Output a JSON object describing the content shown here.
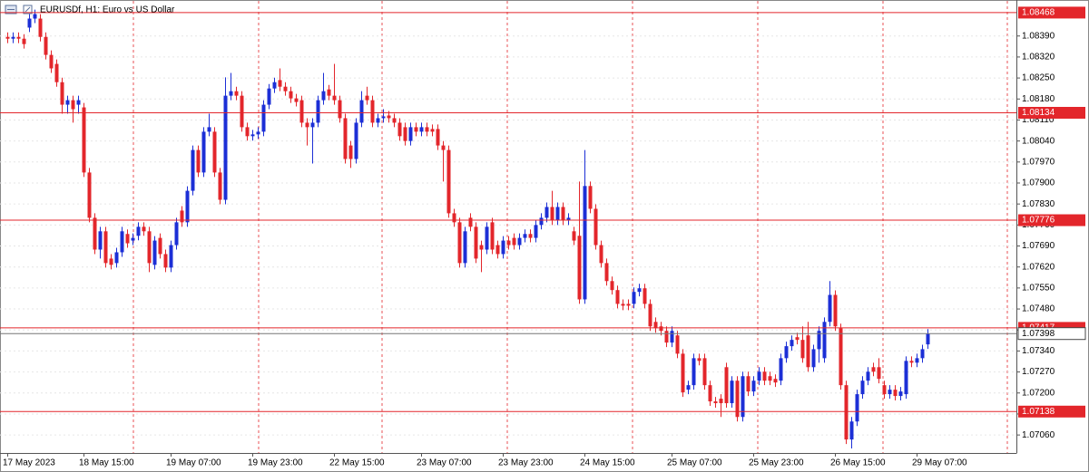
{
  "chart_data": {
    "type": "candlestick",
    "title": "EURUSDf, H1:  Euro vs US Dollar",
    "up_color": "#1c2fd6",
    "down_color": "#e3262b",
    "level_color": "#e3262b",
    "ylim": [
      1.07,
      1.0851
    ],
    "yticks": [
      {
        "value": 1.0839,
        "label": "1.08390"
      },
      {
        "value": 1.0832,
        "label": "1.08320"
      },
      {
        "value": 1.0825,
        "label": "1.08250"
      },
      {
        "value": 1.0818,
        "label": "1.08180"
      },
      {
        "value": 1.0811,
        "label": "1.08110"
      },
      {
        "value": 1.0804,
        "label": "1.08040"
      },
      {
        "value": 1.0797,
        "label": "1.07970"
      },
      {
        "value": 1.079,
        "label": "1.07900"
      },
      {
        "value": 1.0783,
        "label": "1.07830"
      },
      {
        "value": 1.0776,
        "label": "1.07760"
      },
      {
        "value": 1.0769,
        "label": "1.07690"
      },
      {
        "value": 1.0762,
        "label": "1.07620"
      },
      {
        "value": 1.0755,
        "label": "1.07550"
      },
      {
        "value": 1.0748,
        "label": "1.07480"
      },
      {
        "value": 1.0741,
        "label": "1.07410"
      },
      {
        "value": 1.0734,
        "label": "1.07340"
      },
      {
        "value": 1.0727,
        "label": "1.07270"
      },
      {
        "value": 1.072,
        "label": "1.07200"
      },
      {
        "value": 1.0713,
        "label": "1.07130"
      },
      {
        "value": 1.0706,
        "label": "1.07060"
      }
    ],
    "grid": true,
    "levels": [
      1.08468,
      1.08134,
      1.07776,
      1.07417,
      1.07138
    ],
    "bid": 1.07398,
    "categories": [
      "17 May 2023",
      null,
      null,
      null,
      null,
      null,
      null,
      null,
      null,
      null,
      null,
      null,
      null,
      null,
      "18 May 15:00",
      null,
      null,
      null,
      null,
      null,
      null,
      null,
      null,
      null,
      null,
      null,
      null,
      null,
      null,
      null,
      "19 May 07:00",
      null,
      null,
      null,
      null,
      null,
      null,
      null,
      null,
      null,
      null,
      null,
      null,
      null,
      null,
      "19 May 23:00",
      null,
      null,
      null,
      null,
      null,
      null,
      null,
      null,
      null,
      null,
      null,
      null,
      null,
      null,
      "22 May 15:00",
      null,
      null,
      null,
      null,
      null,
      null,
      null,
      null,
      null,
      null,
      null,
      null,
      null,
      null,
      null,
      "23 May 07:00",
      null,
      null,
      null,
      null,
      null,
      null,
      null,
      null,
      null,
      null,
      null,
      null,
      null,
      null,
      "23 May 23:00",
      null,
      null,
      null,
      null,
      null,
      null,
      null,
      null,
      null,
      null,
      null,
      null,
      null,
      null,
      "24 May 15:00",
      null,
      null,
      null,
      null,
      null,
      null,
      null,
      null,
      null,
      null,
      null,
      null,
      null,
      null,
      null,
      "25 May 07:00",
      null,
      null,
      null,
      null,
      null,
      null,
      null,
      null,
      null,
      null,
      null,
      null,
      null,
      null,
      "25 May 23:00",
      null,
      null,
      null,
      null,
      null,
      null,
      null,
      null,
      null,
      null,
      null,
      null,
      null,
      null,
      "26 May 15:00",
      null,
      null,
      null,
      null,
      null,
      null,
      null,
      null,
      null,
      null,
      null,
      null,
      null,
      null,
      "29 May 07:00",
      null,
      null
    ],
    "open": [
      1.08387,
      1.08381,
      1.08387,
      1.08381,
      1.08418,
      1.08448,
      1.08448,
      1.08387,
      1.08327,
      1.08297,
      1.08236,
      1.08161,
      1.08176,
      1.08161,
      1.08152,
      1.07935,
      1.07784,
      1.07678,
      1.07739,
      1.07648,
      1.07633,
      1.07669,
      1.0773,
      1.07708,
      1.07724,
      1.07754,
      1.07739,
      1.07627,
      1.07717,
      1.07663,
      1.07618,
      1.07693,
      1.07808,
      1.07769,
      1.07874,
      1.0801,
      1.07935,
      1.08071,
      1.08071,
      1.07935,
      1.07844,
      1.08191,
      1.08206,
      1.08191,
      1.08086,
      1.08056,
      1.08062,
      1.08071,
      1.08161,
      1.08215,
      1.08243,
      1.08221,
      1.08206,
      1.08182,
      1.08176,
      1.08101,
      1.08086,
      1.08101,
      1.08176,
      1.08212,
      1.08191,
      1.08176,
      1.08116,
      1.08025,
      1.0798,
      1.08101,
      1.08191,
      1.08176,
      1.08101,
      1.08116,
      1.08125,
      1.08116,
      1.08101,
      1.08086,
      1.0804,
      1.08086,
      1.08071,
      1.08086,
      1.0808,
      1.0808,
      1.08025,
      1.0801,
      1.07799,
      1.07769,
      1.07633,
      1.07784,
      1.07754,
      1.07693,
      1.07678,
      1.07769,
      1.07693,
      1.07663,
      1.07708,
      1.07717,
      1.07693,
      1.07717,
      1.0773,
      1.07717,
      1.0776,
      1.07784,
      1.0782,
      1.07775,
      1.0782,
      1.07775,
      1.07739,
      1.07724,
      1.07512,
      1.0789,
      1.07814,
      1.07693,
      1.07633,
      1.07573,
      1.07543,
      1.07497,
      1.07497,
      1.07497,
      1.07537,
      1.07549,
      1.07497,
      1.07437,
      1.07422,
      1.07407,
      1.07368,
      1.07392,
      1.07331,
      1.07211,
      1.07226,
      1.07316,
      1.07316,
      1.07226,
      1.07172,
      1.07181,
      1.07286,
      1.07166,
      1.07241,
      1.0712,
      1.07256,
      1.07205,
      1.07241,
      1.07271,
      1.07256,
      1.07247,
      1.07241,
      1.07316,
      1.07356,
      1.07386,
      1.07377,
      1.07392,
      1.07286,
      1.07346,
      1.07316,
      1.07437,
      1.07527,
      1.07416,
      1.07226,
      1.07045,
      1.07105,
      1.07196,
      1.07241,
      1.07286,
      1.07286,
      1.07226,
      1.07196,
      1.07211,
      1.0719,
      1.07196,
      1.07307,
      1.07301,
      1.07316,
      1.07362
    ],
    "high": [
      1.08402,
      1.08402,
      1.08402,
      1.08396,
      1.08463,
      1.08478,
      1.08463,
      1.08402,
      1.08342,
      1.08312,
      1.08251,
      1.08191,
      1.08191,
      1.08191,
      1.08167,
      1.0795,
      1.07799,
      1.07754,
      1.07754,
      1.07663,
      1.07684,
      1.07754,
      1.07745,
      1.07732,
      1.07769,
      1.07769,
      1.07754,
      1.07723,
      1.07732,
      1.07678,
      1.07708,
      1.07784,
      1.07823,
      1.07889,
      1.08025,
      1.08025,
      1.08086,
      1.08131,
      1.08086,
      1.0795,
      1.08252,
      1.08267,
      1.08221,
      1.08206,
      1.08101,
      1.08077,
      1.08086,
      1.08176,
      1.0823,
      1.08251,
      1.08282,
      1.08236,
      1.08221,
      1.08197,
      1.08191,
      1.08116,
      1.08116,
      1.08191,
      1.08267,
      1.08227,
      1.08297,
      1.08191,
      1.08131,
      1.0804,
      1.08116,
      1.08206,
      1.08221,
      1.08191,
      1.08131,
      1.08146,
      1.0814,
      1.08131,
      1.08116,
      1.08101,
      1.08101,
      1.08101,
      1.08101,
      1.08101,
      1.08095,
      1.08095,
      1.0804,
      1.08025,
      1.07814,
      1.07784,
      1.07754,
      1.07799,
      1.07769,
      1.07708,
      1.07769,
      1.07784,
      1.07708,
      1.07723,
      1.07723,
      1.07732,
      1.07732,
      1.07745,
      1.07745,
      1.07775,
      1.07799,
      1.07835,
      1.07874,
      1.07835,
      1.07835,
      1.07799,
      1.07754,
      1.07905,
      1.0801,
      1.07905,
      1.07829,
      1.07708,
      1.07648,
      1.07588,
      1.07558,
      1.07512,
      1.07512,
      1.07552,
      1.07564,
      1.07564,
      1.07512,
      1.07452,
      1.07437,
      1.07422,
      1.07422,
      1.07407,
      1.07346,
      1.07241,
      1.07331,
      1.07331,
      1.07331,
      1.07241,
      1.07187,
      1.07196,
      1.07301,
      1.07256,
      1.07256,
      1.07271,
      1.07271,
      1.07256,
      1.07286,
      1.07286,
      1.07271,
      1.07262,
      1.07331,
      1.07371,
      1.07392,
      1.07401,
      1.07422,
      1.07437,
      1.07361,
      1.07422,
      1.07452,
      1.07573,
      1.07542,
      1.07431,
      1.07241,
      1.0712,
      1.07211,
      1.07256,
      1.07286,
      1.07301,
      1.07316,
      1.07241,
      1.07226,
      1.07226,
      1.0722,
      1.07322,
      1.07322,
      1.07331,
      1.07361,
      1.07413
    ],
    "low": [
      1.08366,
      1.08366,
      1.08366,
      1.08348,
      1.08403,
      1.08433,
      1.08372,
      1.08312,
      1.08267,
      1.08221,
      1.08131,
      1.08131,
      1.08101,
      1.08131,
      1.0792,
      1.07769,
      1.07663,
      1.07648,
      1.07618,
      1.07612,
      1.07618,
      1.07654,
      1.07684,
      1.07693,
      1.07709,
      1.07724,
      1.07603,
      1.07612,
      1.07648,
      1.07603,
      1.07603,
      1.07678,
      1.07754,
      1.07754,
      1.07859,
      1.0792,
      1.0792,
      1.08056,
      1.0792,
      1.07829,
      1.07829,
      1.08176,
      1.08176,
      1.08071,
      1.08041,
      1.08041,
      1.08047,
      1.08056,
      1.08146,
      1.082,
      1.08206,
      1.08191,
      1.08167,
      1.08155,
      1.08086,
      1.08025,
      1.07965,
      1.08086,
      1.08161,
      1.08176,
      1.08161,
      1.08101,
      1.07965,
      1.0795,
      1.07965,
      1.08086,
      1.08161,
      1.08086,
      1.08086,
      1.08101,
      1.08101,
      1.08086,
      1.08041,
      1.08025,
      1.08025,
      1.08056,
      1.08056,
      1.08056,
      1.08056,
      1.0801,
      1.07905,
      1.07784,
      1.07754,
      1.07618,
      1.07618,
      1.07739,
      1.07633,
      1.07603,
      1.07663,
      1.07663,
      1.07648,
      1.07648,
      1.07678,
      1.07678,
      1.07678,
      1.07702,
      1.07702,
      1.07702,
      1.07745,
      1.07769,
      1.0776,
      1.0776,
      1.0776,
      1.0776,
      1.07693,
      1.07497,
      1.07497,
      1.07799,
      1.07678,
      1.07618,
      1.07558,
      1.07528,
      1.07482,
      1.07476,
      1.07476,
      1.07482,
      1.07522,
      1.07482,
      1.07407,
      1.07401,
      1.07392,
      1.07353,
      1.07353,
      1.07316,
      1.07187,
      1.07196,
      1.07211,
      1.07292,
      1.07211,
      1.07157,
      1.07151,
      1.0712,
      1.07151,
      1.07151,
      1.07105,
      1.07105,
      1.0719,
      1.0719,
      1.07226,
      1.07226,
      1.07226,
      1.0722,
      1.07226,
      1.07301,
      1.07341,
      1.07362,
      1.07301,
      1.07271,
      1.07271,
      1.07301,
      1.07301,
      1.07422,
      1.07407,
      1.07211,
      1.0703,
      1.07015,
      1.0709,
      1.07181,
      1.07226,
      1.07256,
      1.07232,
      1.07181,
      1.07181,
      1.07175,
      1.07175,
      1.07181,
      1.07286,
      1.07286,
      1.07301,
      1.07347
    ],
    "close": [
      1.08381,
      1.08387,
      1.08381,
      1.08363,
      1.08448,
      1.08463,
      1.08387,
      1.08327,
      1.08282,
      1.08236,
      1.08161,
      1.08176,
      1.08146,
      1.08176,
      1.07935,
      1.07784,
      1.07678,
      1.07739,
      1.07633,
      1.07627,
      1.07669,
      1.07739,
      1.07699,
      1.07717,
      1.07754,
      1.07739,
      1.07633,
      1.07708,
      1.07663,
      1.07618,
      1.07693,
      1.07769,
      1.07769,
      1.07874,
      1.0801,
      1.07935,
      1.08071,
      1.08086,
      1.07935,
      1.07844,
      1.08191,
      1.08206,
      1.08191,
      1.08086,
      1.08056,
      1.08062,
      1.08071,
      1.08161,
      1.08215,
      1.08236,
      1.08221,
      1.08206,
      1.08182,
      1.0817,
      1.08101,
      1.08086,
      1.08101,
      1.08176,
      1.08206,
      1.08191,
      1.08176,
      1.08116,
      1.0798,
      1.0798,
      1.08101,
      1.08176,
      1.08176,
      1.08101,
      1.08116,
      1.08122,
      1.08116,
      1.08101,
      1.08056,
      1.0804,
      1.08086,
      1.08071,
      1.08086,
      1.08071,
      1.08071,
      1.08025,
      1.0801,
      1.07799,
      1.07769,
      1.07633,
      1.07739,
      1.07754,
      1.07648,
      1.07678,
      1.07754,
      1.07678,
      1.07663,
      1.07708,
      1.07693,
      1.07693,
      1.07717,
      1.0773,
      1.07717,
      1.0776,
      1.07784,
      1.0782,
      1.07775,
      1.0782,
      1.07775,
      1.07784,
      1.07708,
      1.07512,
      1.0789,
      1.07814,
      1.07693,
      1.07633,
      1.07573,
      1.07543,
      1.07497,
      1.07491,
      1.07491,
      1.07537,
      1.07549,
      1.07497,
      1.07422,
      1.07416,
      1.07407,
      1.07368,
      1.07407,
      1.07331,
      1.07202,
      1.07226,
      1.07316,
      1.07307,
      1.07226,
      1.07172,
      1.07166,
      1.07166,
      1.07166,
      1.07241,
      1.0712,
      1.07256,
      1.07205,
      1.07241,
      1.07271,
      1.07241,
      1.07241,
      1.07235,
      1.07316,
      1.07356,
      1.07377,
      1.07377,
      1.07316,
      1.07286,
      1.07346,
      1.07407,
      1.07437,
      1.07527,
      1.07422,
      1.07226,
      1.07045,
      1.07105,
      1.07196,
      1.07241,
      1.07271,
      1.07271,
      1.07247,
      1.07196,
      1.07211,
      1.0719,
      1.07205,
      1.07307,
      1.07301,
      1.07316,
      1.07346,
      1.07398
    ]
  }
}
